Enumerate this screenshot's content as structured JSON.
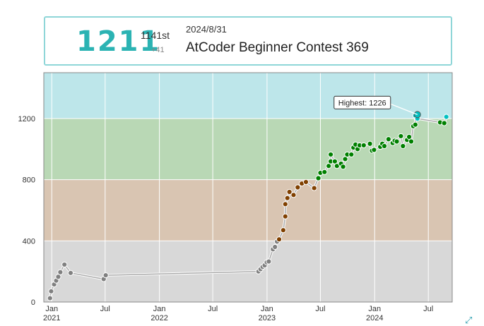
{
  "status": {
    "rating": "1211",
    "rank": "1141st",
    "diff": "+41",
    "date": "2024/8/31",
    "contest": "AtCoder Beginner Contest 369"
  },
  "colors": {
    "gray_band": "#d8d8d8",
    "brown_band": "#d9c5b2",
    "green_band": "#b9d8b5",
    "cyan_band": "#bde6ea",
    "gray_point": "#808080",
    "brown_point": "#804000",
    "green_point": "#008000",
    "cyan_point": "#00c0c0",
    "line": "#aaaaaa"
  },
  "chart_data": {
    "type": "line",
    "title": "",
    "xlabel": "",
    "ylabel": "",
    "ylim": [
      0,
      1500
    ],
    "yticks": [
      0,
      400,
      800,
      1200
    ],
    "xlim": [
      "2020-12-05",
      "2024-09-20"
    ],
    "xticks": [
      {
        "date": "2021-01-01",
        "label": "Jan",
        "year": "2021"
      },
      {
        "date": "2021-07-01",
        "label": "Jul",
        "year": ""
      },
      {
        "date": "2022-01-01",
        "label": "Jan",
        "year": "2022"
      },
      {
        "date": "2022-07-01",
        "label": "Jul",
        "year": ""
      },
      {
        "date": "2023-01-01",
        "label": "Jan",
        "year": "2023"
      },
      {
        "date": "2023-07-01",
        "label": "Jul",
        "year": ""
      },
      {
        "date": "2024-01-01",
        "label": "Jan",
        "year": "2024"
      },
      {
        "date": "2024-07-01",
        "label": "Jul",
        "year": ""
      }
    ],
    "bands": [
      {
        "from": 0,
        "to": 400,
        "name": "gray"
      },
      {
        "from": 400,
        "to": 800,
        "name": "brown"
      },
      {
        "from": 800,
        "to": 1200,
        "name": "green"
      },
      {
        "from": 1200,
        "to": 1500,
        "name": "cyan"
      }
    ],
    "annotation": {
      "text": "Highest: 1226",
      "date": "2024-05-25",
      "value": 1226
    },
    "series": [
      {
        "points": [
          [
            "2020-12-26",
            25
          ],
          [
            "2020-12-30",
            70
          ],
          [
            "2021-01-09",
            115
          ],
          [
            "2021-01-16",
            140
          ],
          [
            "2021-01-23",
            165
          ],
          [
            "2021-01-30",
            195
          ],
          [
            "2021-02-13",
            245
          ],
          [
            "2021-03-06",
            190
          ],
          [
            "2021-06-26",
            150
          ],
          [
            "2021-07-03",
            175
          ],
          [
            "2022-12-03",
            200
          ],
          [
            "2022-12-10",
            215
          ],
          [
            "2022-12-17",
            230
          ],
          [
            "2022-12-24",
            240
          ],
          [
            "2022-12-31",
            260
          ],
          [
            "2023-01-07",
            265
          ],
          [
            "2023-01-21",
            345
          ],
          [
            "2023-01-28",
            360
          ],
          [
            "2023-02-04",
            395
          ],
          [
            "2023-02-11",
            410
          ],
          [
            "2023-02-25",
            470
          ],
          [
            "2023-03-04",
            560
          ],
          [
            "2023-03-04",
            640
          ],
          [
            "2023-03-11",
            680
          ],
          [
            "2023-03-18",
            720
          ],
          [
            "2023-04-01",
            700
          ],
          [
            "2023-04-15",
            750
          ],
          [
            "2023-04-29",
            775
          ],
          [
            "2023-05-13",
            785
          ],
          [
            "2023-06-10",
            745
          ],
          [
            "2023-06-24",
            810
          ],
          [
            "2023-07-01",
            845
          ],
          [
            "2023-07-15",
            850
          ],
          [
            "2023-07-29",
            890
          ],
          [
            "2023-08-05",
            920
          ],
          [
            "2023-08-05",
            965
          ],
          [
            "2023-08-19",
            920
          ],
          [
            "2023-08-26",
            890
          ],
          [
            "2023-09-09",
            905
          ],
          [
            "2023-09-16",
            885
          ],
          [
            "2023-09-23",
            935
          ],
          [
            "2023-09-30",
            965
          ],
          [
            "2023-10-14",
            965
          ],
          [
            "2023-10-21",
            1010
          ],
          [
            "2023-10-28",
            1030
          ],
          [
            "2023-11-04",
            1000
          ],
          [
            "2023-11-11",
            1025
          ],
          [
            "2023-11-25",
            1025
          ],
          [
            "2023-12-16",
            1035
          ],
          [
            "2023-12-23",
            990
          ],
          [
            "2023-12-30",
            995
          ],
          [
            "2024-01-20",
            1015
          ],
          [
            "2024-01-27",
            1035
          ],
          [
            "2024-02-03",
            1020
          ],
          [
            "2024-02-17",
            1065
          ],
          [
            "2024-03-02",
            1040
          ],
          [
            "2024-03-09",
            1055
          ],
          [
            "2024-03-16",
            1050
          ],
          [
            "2024-03-30",
            1085
          ],
          [
            "2024-04-06",
            1020
          ],
          [
            "2024-04-20",
            1060
          ],
          [
            "2024-04-27",
            1080
          ],
          [
            "2024-05-04",
            1050
          ],
          [
            "2024-05-11",
            1150
          ],
          [
            "2024-05-18",
            1160
          ],
          [
            "2024-05-18",
            1220
          ],
          [
            "2024-05-25",
            1226
          ],
          [
            "2024-05-25",
            1200
          ],
          [
            "2024-08-10",
            1175
          ],
          [
            "2024-08-24",
            1170
          ],
          [
            "2024-08-31",
            1211
          ]
        ]
      }
    ]
  }
}
